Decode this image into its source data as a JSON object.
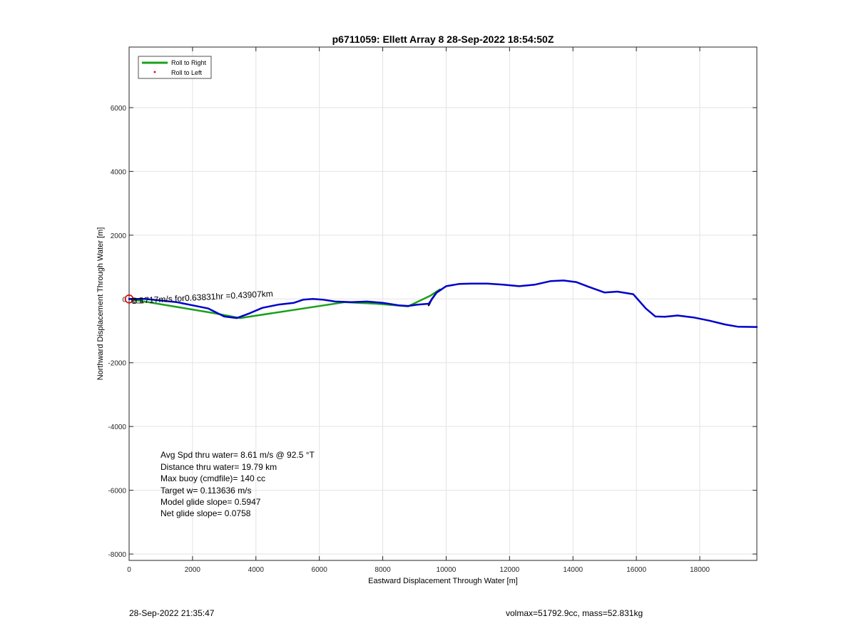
{
  "chart_data": {
    "type": "line",
    "title": "p6711059: Ellett Array 8 28-Sep-2022 18:54:50Z",
    "xlabel": "Eastward Displacement Through Water [m]",
    "ylabel": "Northward Displacement Through Water [m]",
    "xlim": [
      0,
      19800
    ],
    "ylim": [
      -8200,
      7900
    ],
    "xticks": [
      0,
      2000,
      4000,
      6000,
      8000,
      10000,
      12000,
      14000,
      16000,
      18000
    ],
    "yticks": [
      -8000,
      -6000,
      -4000,
      -2000,
      0,
      2000,
      4000,
      6000
    ],
    "grid": true,
    "legend_position": "top-left",
    "legend": [
      {
        "label": "Roll to Right",
        "color": "#1aa01a",
        "marker": "line"
      },
      {
        "label": "Roll to Left",
        "color": "#e00000",
        "marker": "dot"
      }
    ],
    "series": [
      {
        "name": "Roll to Right",
        "color": "#1aa01a",
        "x": [
          0,
          2700,
          3500,
          6800,
          7800,
          8800,
          9500,
          9800
        ],
        "y": [
          0,
          -450,
          -600,
          -100,
          -150,
          -230,
          100,
          300
        ]
      },
      {
        "color": "#111111",
        "x": [
          9450,
          9550,
          9700,
          9850
        ],
        "y": [
          -200,
          0,
          200,
          300
        ]
      },
      {
        "color": "#0000cc",
        "x": [
          0,
          500,
          1000,
          1500,
          2000,
          2500,
          3000,
          3400,
          3800,
          4200,
          4700,
          5200,
          5500,
          5800,
          6100,
          6500,
          7000,
          7500,
          8000,
          8500,
          8800,
          9100,
          9450,
          9700,
          10000,
          10400,
          10800,
          11300,
          11800,
          12300,
          12800,
          13300,
          13700,
          14100,
          14500,
          15000,
          15400,
          15900,
          16300,
          16600,
          16900,
          17300,
          17800,
          18300,
          18800,
          19200,
          19800
        ],
        "y": [
          0,
          0,
          -50,
          -100,
          -200,
          -300,
          -550,
          -600,
          -450,
          -280,
          -180,
          -120,
          -20,
          0,
          -20,
          -80,
          -100,
          -80,
          -120,
          -200,
          -220,
          -180,
          -150,
          200,
          400,
          470,
          480,
          480,
          450,
          400,
          450,
          560,
          580,
          530,
          380,
          200,
          230,
          150,
          -300,
          -550,
          -560,
          -520,
          -580,
          -680,
          -800,
          -870,
          -880
        ]
      }
    ],
    "start_marker": {
      "x": 0,
      "y": 0,
      "color": "#e00000"
    },
    "annotation": {
      "text": "0.1717m/s for0.63831hr =0.43907km",
      "overlap_text": "0.1",
      "x": 150,
      "y": 0
    },
    "stats": [
      "Avg Spd thru water=  8.61 m/s @  92.5 °T",
      "Distance thru water= 19.79 km",
      "Max buoy (cmdfile)= 140 cc",
      "Target w= 0.113636 m/s",
      "Model glide slope= 0.5947",
      "Net glide slope= 0.0758"
    ]
  },
  "footer": {
    "timestamp": "28-Sep-2022 21:35:47",
    "mass_info": "volmax=51792.9cc, mass=52.831kg"
  }
}
